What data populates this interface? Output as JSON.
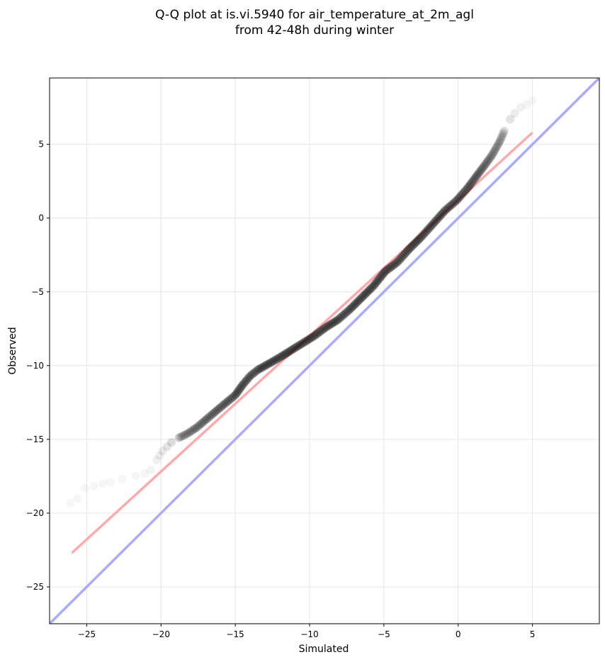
{
  "chart_data": {
    "type": "scatter",
    "title_lines": [
      "Q-Q plot at is.vi.5940 for air_temperature_at_2m_agl",
      "from 42-48h during winter"
    ],
    "xlabel": "Simulated",
    "ylabel": "Observed",
    "xlim": [
      -27.5,
      9.5
    ],
    "ylim": [
      -27.5,
      9.5
    ],
    "xticks": [
      -25,
      -20,
      -15,
      -10,
      -5,
      0,
      5
    ],
    "yticks": [
      -25,
      -20,
      -15,
      -10,
      -5,
      0,
      5
    ],
    "grid": true,
    "reference_line": {
      "color": "#aaaaff",
      "from": [
        -27.5,
        -27.5
      ],
      "to": [
        9.5,
        9.5
      ]
    },
    "fit_line": {
      "color": "#ffaaaa",
      "from": [
        -26.0,
        -22.7
      ],
      "to": [
        5.0,
        5.8
      ]
    },
    "points": {
      "color": "#000000",
      "x": [
        -26.1,
        -25.6,
        -25.1,
        -23.9,
        -23.4,
        -22.6,
        -21.7,
        -21.1,
        -20.7,
        -20.3,
        -20.1,
        -19.9,
        -19.6,
        -19.3,
        -18.8,
        -18.2,
        -17.6,
        -16.9,
        -16.2,
        -15.6,
        -15.0,
        -14.5,
        -14.0,
        -13.5,
        -12.8,
        -12.1,
        -11.3,
        -10.5,
        -9.7,
        -8.9,
        -8.1,
        -7.3,
        -6.5,
        -5.7,
        -4.9,
        -4.1,
        -3.3,
        -2.5,
        -1.7,
        -0.9,
        -0.1,
        0.6,
        1.2,
        1.8,
        2.3,
        2.8,
        3.1,
        3.5,
        3.8,
        4.2,
        4.6,
        5.0
      ],
      "y": [
        -19.3,
        -19.0,
        -18.3,
        -18.0,
        -17.9,
        -17.7,
        -17.5,
        -17.3,
        -17.1,
        -16.4,
        -16.1,
        -15.8,
        -15.5,
        -15.2,
        -14.9,
        -14.6,
        -14.2,
        -13.6,
        -13.0,
        -12.5,
        -12.0,
        -11.3,
        -10.7,
        -10.3,
        -9.9,
        -9.5,
        -9.0,
        -8.5,
        -8.0,
        -7.4,
        -6.9,
        -6.2,
        -5.4,
        -4.6,
        -3.6,
        -3.0,
        -2.1,
        -1.3,
        -0.4,
        0.5,
        1.2,
        2.0,
        2.8,
        3.6,
        4.3,
        5.2,
        5.9,
        6.7,
        7.1,
        7.5,
        7.7,
        8.0
      ],
      "alpha": [
        0.12,
        0.12,
        0.12,
        0.12,
        0.12,
        0.12,
        0.12,
        0.12,
        0.15,
        0.18,
        0.22,
        0.28,
        0.35,
        0.45,
        0.55,
        0.65,
        0.75,
        0.82,
        0.88,
        0.92,
        0.95,
        0.97,
        0.98,
        0.98,
        0.98,
        0.98,
        0.98,
        0.98,
        0.98,
        0.98,
        0.98,
        0.98,
        0.98,
        0.98,
        0.98,
        0.98,
        0.98,
        0.98,
        0.98,
        0.98,
        0.95,
        0.9,
        0.85,
        0.75,
        0.65,
        0.55,
        0.45,
        0.35,
        0.25,
        0.18,
        0.14,
        0.12
      ]
    }
  }
}
